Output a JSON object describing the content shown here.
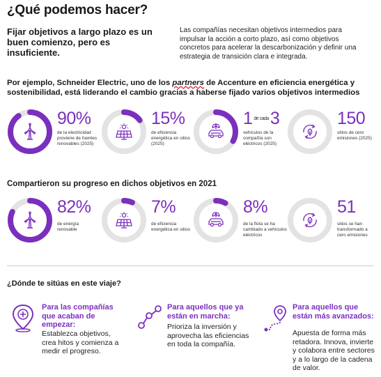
{
  "title": "¿Qué podemos hacer?",
  "lead": "Fijar objetivos a largo plazo es un buen comienzo, pero es insuficiente.",
  "intro": "Las compañías necesitan objetivos intermedios para impulsar la acción a corto plazo, así como objetivos concretos para acelerar la descarbonización y definir una estrategia de transición clara e integrada.",
  "section1": {
    "before": "Por ejemplo, Schneider Electric, uno de los ",
    "partners": "partners",
    "after": " de Accenture en eficiencia energética y sostenibilidad, está liderando el cambio gracias a haberse fijado varios objetivos intermedios"
  },
  "section1_stats": [
    {
      "value": "90%",
      "progress": 0.9,
      "icon": "wind-turbine-icon",
      "text": "de la electricidad proviene de fuentes renovables (2025)"
    },
    {
      "value": "15%",
      "progress": 0.15,
      "icon": "solar-panel-icon",
      "text": "de eficiencia energética en sitios (2025)"
    },
    {
      "value_a": "1",
      "mid": "de cada",
      "value_b": "3",
      "progress": 0.33,
      "icon": "electric-car-icon",
      "text": "vehículos de la compañía son eléctricos (2025)"
    },
    {
      "value": "150",
      "progress": 0.0,
      "icon": "recycle-leaf-icon",
      "text": "sitios de cero emisiones (2025)"
    }
  ],
  "section2_title": "Compartieron su progreso en dichos objetivos en 2021",
  "section2_stats": [
    {
      "value": "82%",
      "progress": 0.82,
      "icon": "wind-turbine-icon",
      "text": "de energía renovable"
    },
    {
      "value": "7%",
      "progress": 0.07,
      "icon": "solar-panel-icon",
      "text": "de eficiencia energética en sitios"
    },
    {
      "value": "8%",
      "progress": 0.08,
      "icon": "electric-car-icon",
      "text": "de la flota se ha cambiado a vehículos eléctricos"
    },
    {
      "value": "51",
      "progress": 0.0,
      "icon": "recycle-leaf-icon",
      "text": "sitios se han transformado a cero emisiones"
    }
  ],
  "section3_title": "¿Dónde te sitúas en este viaje?",
  "columns": [
    {
      "icon": "location-plus-icon",
      "head": "Para las compañías que acaban de empezar:",
      "body": "Establezca objetivos, crea hitos y comienza a medir el progreso."
    },
    {
      "icon": "route-nodes-icon",
      "head": "Para aquellos que ya están en marcha:",
      "body": "Prioriza la inversión y aprovecha las eficiencias en toda la compañía."
    },
    {
      "icon": "location-route-icon",
      "head": "Para aquellos que están más avanzados:",
      "body": "Apuesta de forma más retadora. Innova, invierte y colabora entre sectores y a lo largo de la cadena de valor."
    }
  ],
  "colors": {
    "accent": "#7b2fbe",
    "track": "#e3e3e3",
    "text": "#1a1a1a"
  }
}
